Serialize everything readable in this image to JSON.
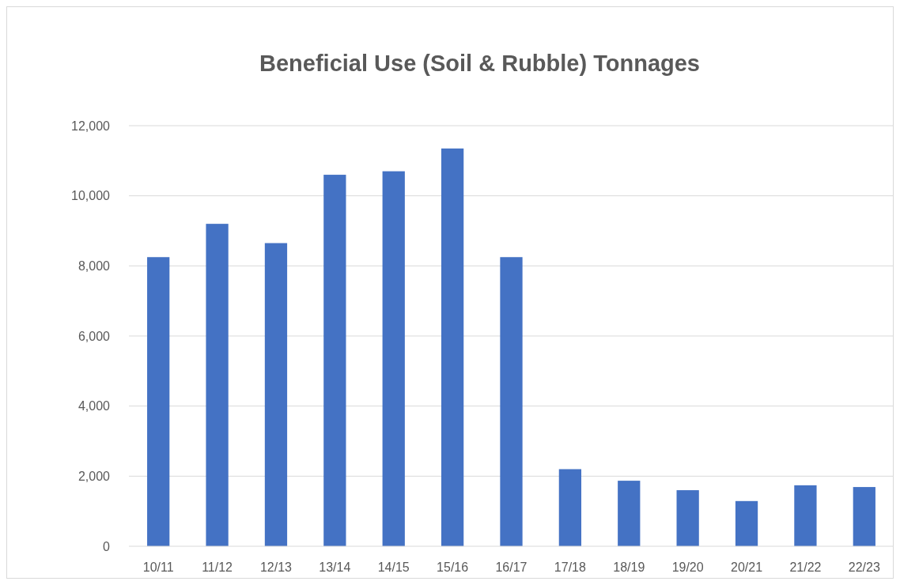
{
  "chart_data": {
    "type": "bar",
    "title": "Beneficial Use (Soil & Rubble) Tonnages",
    "categories": [
      "10/11",
      "11/12",
      "12/13",
      "13/14",
      "14/15",
      "15/16",
      "16/17",
      "17/18",
      "18/19",
      "19/20",
      "20/21",
      "21/22",
      "22/23"
    ],
    "values": [
      8250,
      9200,
      8650,
      10600,
      10700,
      11350,
      8250,
      2200,
      1870,
      1600,
      1290,
      1740,
      1690
    ],
    "color": "#4472c4",
    "ylim": [
      0,
      12000
    ],
    "yticks": [
      {
        "value": 0,
        "label": "0"
      },
      {
        "value": 2000,
        "label": "2,000"
      },
      {
        "value": 4000,
        "label": "4,000"
      },
      {
        "value": 6000,
        "label": "6,000"
      },
      {
        "value": 8000,
        "label": "8,000"
      },
      {
        "value": 10000,
        "label": "10,000"
      },
      {
        "value": 12000,
        "label": "12,000"
      }
    ],
    "grid": "y"
  }
}
